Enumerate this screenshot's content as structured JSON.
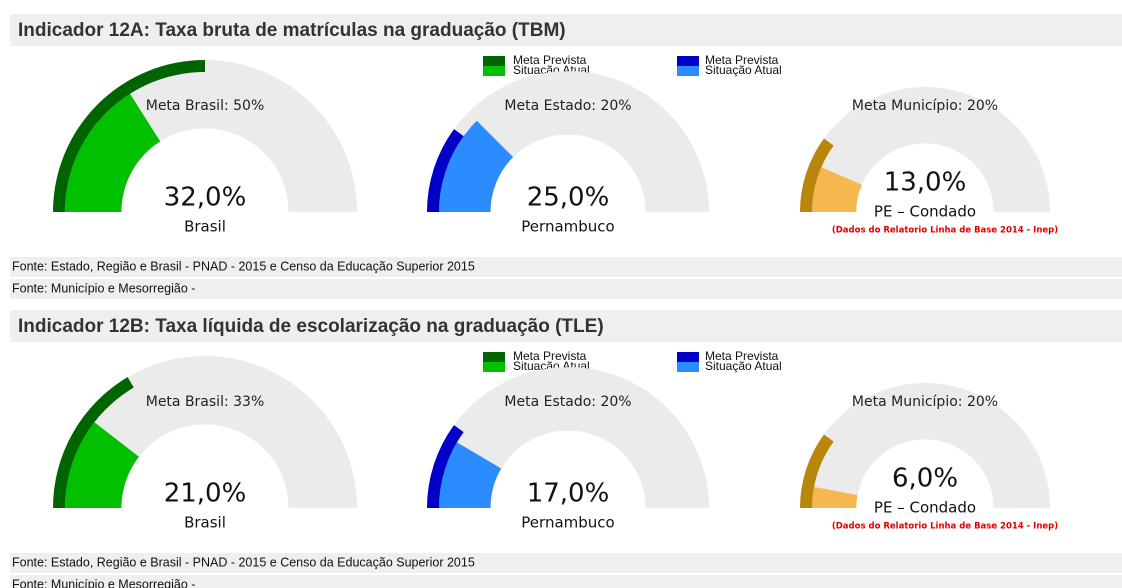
{
  "panels": [
    {
      "title": "Indicador 12A: Taxa bruta de matrículas na graduação (TBM)",
      "legend": [
        {
          "name": "Meta Prevista",
          "color": "#006400"
        },
        {
          "name": "Situação Atual",
          "color": "#00c000"
        },
        {
          "name": "Meta Prevista",
          "color": "#0000c8"
        },
        {
          "name": "Situação Atual",
          "color": "#2b8cff"
        }
      ],
      "chart_data": [
        {
          "type": "gauge",
          "title": "Meta Brasil: 50%",
          "label": "Brasil",
          "meta": 50,
          "value": 32.0,
          "value_label": "32,0%",
          "ylim": [
            0,
            100
          ],
          "meta_color": "#006400",
          "value_color": "#00c000",
          "track_color": "#ebebeb"
        },
        {
          "type": "gauge",
          "title": "Meta Estado: 20%",
          "label": "Pernambuco",
          "meta": 20,
          "value": 25.0,
          "value_label": "25,0%",
          "ylim": [
            0,
            100
          ],
          "meta_color": "#0000c8",
          "value_color": "#2b8cff",
          "track_color": "#ebebeb"
        },
        {
          "type": "gauge",
          "title": "Meta Município: 20%",
          "label": "PE – Condado",
          "note": "(Dados do Relatorio Linha de Base 2014 - Inep)",
          "meta": 20,
          "value": 13.0,
          "value_label": "13,0%",
          "ylim": [
            0,
            100
          ],
          "meta_color": "#b8860b",
          "value_color": "#f5b851",
          "track_color": "#ebebeb"
        }
      ],
      "sources": [
        "Fonte: Estado, Região e Brasil - PNAD - 2015 e Censo da Educação Superior 2015",
        "Fonte: Município e Mesorregião -"
      ]
    },
    {
      "title": "Indicador 12B: Taxa líquida de escolarização na graduação (TLE)",
      "legend": [
        {
          "name": "Meta Prevista",
          "color": "#006400"
        },
        {
          "name": "Situação Atual",
          "color": "#00c000"
        },
        {
          "name": "Meta Prevista",
          "color": "#0000c8"
        },
        {
          "name": "Situação Atual",
          "color": "#2b8cff"
        }
      ],
      "chart_data": [
        {
          "type": "gauge",
          "title": "Meta Brasil: 33%",
          "label": "Brasil",
          "meta": 33,
          "value": 21.0,
          "value_label": "21,0%",
          "ylim": [
            0,
            100
          ],
          "meta_color": "#006400",
          "value_color": "#00c000",
          "track_color": "#ebebeb"
        },
        {
          "type": "gauge",
          "title": "Meta Estado: 20%",
          "label": "Pernambuco",
          "meta": 20,
          "value": 17.0,
          "value_label": "17,0%",
          "ylim": [
            0,
            100
          ],
          "meta_color": "#0000c8",
          "value_color": "#2b8cff",
          "track_color": "#ebebeb"
        },
        {
          "type": "gauge",
          "title": "Meta Município: 20%",
          "label": "PE – Condado",
          "note": "(Dados do Relatorio Linha de Base 2014 - Inep)",
          "meta": 20,
          "value": 6.0,
          "value_label": "6,0%",
          "ylim": [
            0,
            100
          ],
          "meta_color": "#b8860b",
          "value_color": "#f5b851",
          "track_color": "#ebebeb"
        }
      ],
      "sources": [
        "Fonte: Estado, Região e Brasil - PNAD - 2015 e Censo da Educação Superior 2015",
        "Fonte: Município e Mesorregião -"
      ]
    }
  ]
}
